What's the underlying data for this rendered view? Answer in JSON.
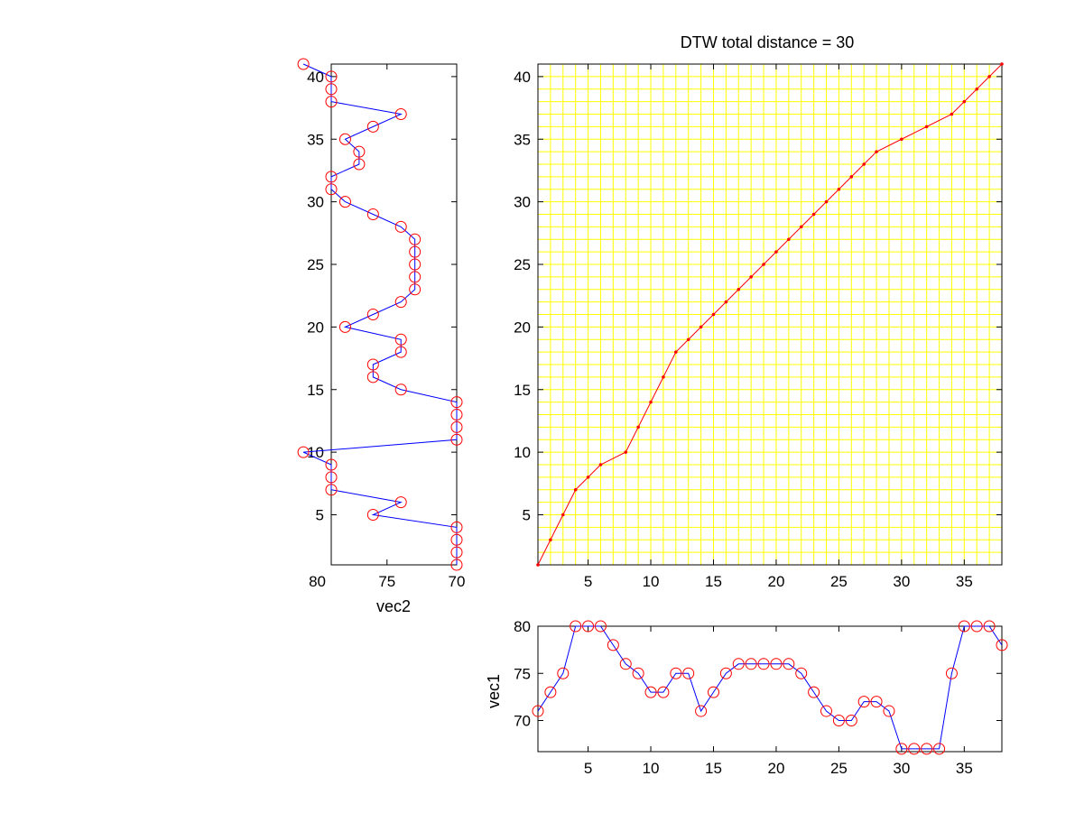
{
  "chart_data": [
    {
      "type": "line",
      "panel": "warping-path",
      "title": "DTW total distance = 30",
      "xlim": [
        1,
        38
      ],
      "ylim": [
        1,
        41
      ],
      "xticks": [
        5,
        10,
        15,
        20,
        25,
        30,
        35
      ],
      "yticks": [
        5,
        10,
        15,
        20,
        25,
        30,
        35,
        40
      ],
      "grid": true,
      "grid_color": "#ffff00",
      "line_color": "#ff0000",
      "marker": "dot",
      "path": [
        [
          1,
          1
        ],
        [
          2,
          3
        ],
        [
          3,
          5
        ],
        [
          4,
          7
        ],
        [
          5,
          8
        ],
        [
          6,
          9
        ],
        [
          8,
          10
        ],
        [
          9,
          12
        ],
        [
          10,
          14
        ],
        [
          11,
          16
        ],
        [
          12,
          18
        ],
        [
          13,
          19
        ],
        [
          14,
          20
        ],
        [
          15,
          21
        ],
        [
          16,
          22
        ],
        [
          17,
          23
        ],
        [
          18,
          24
        ],
        [
          19,
          25
        ],
        [
          20,
          26
        ],
        [
          21,
          27
        ],
        [
          22,
          28
        ],
        [
          23,
          29
        ],
        [
          24,
          30
        ],
        [
          25,
          31
        ],
        [
          26,
          32
        ],
        [
          27,
          33
        ],
        [
          28,
          34
        ],
        [
          30,
          35
        ],
        [
          32,
          36
        ],
        [
          34,
          37
        ],
        [
          35,
          38
        ],
        [
          36,
          39
        ],
        [
          37,
          40
        ],
        [
          38,
          41
        ]
      ]
    },
    {
      "type": "line",
      "panel": "vec1",
      "ylabel": "vec1",
      "xlim": [
        1,
        38
      ],
      "ylim": [
        66.7,
        80
      ],
      "xticks": [
        5,
        10,
        15,
        20,
        25,
        30,
        35
      ],
      "yticks": [
        70,
        75,
        80
      ],
      "line_color": "#0000ff",
      "marker_color": "#ff0000",
      "marker": "circle",
      "values": [
        71,
        73,
        75,
        80,
        80,
        80,
        78,
        76,
        75,
        73,
        73,
        75,
        75,
        71,
        73,
        75,
        76,
        76,
        76,
        76,
        76,
        75,
        73,
        71,
        70,
        70,
        72,
        72,
        71,
        67,
        67,
        67,
        67,
        75,
        80,
        80,
        80,
        78
      ]
    },
    {
      "type": "line",
      "panel": "vec2",
      "xlabel": "vec2",
      "orientation": "vertical",
      "x_reversed": true,
      "xlim": [
        70,
        79
      ],
      "ylim": [
        1,
        41
      ],
      "xticks": [
        80,
        75,
        70
      ],
      "yticks": [
        5,
        10,
        15,
        20,
        25,
        30,
        35,
        40
      ],
      "line_color": "#0000ff",
      "marker_color": "#ff0000",
      "marker": "circle",
      "values": [
        70,
        70,
        70,
        70,
        76,
        74,
        79,
        79,
        79,
        81,
        70,
        70,
        70,
        70,
        74,
        76,
        76,
        74,
        74,
        78,
        76,
        74,
        73,
        73,
        73,
        73,
        73,
        74,
        76,
        78,
        79,
        79,
        77,
        77,
        78,
        76,
        74,
        79,
        79,
        79,
        81
      ]
    }
  ]
}
